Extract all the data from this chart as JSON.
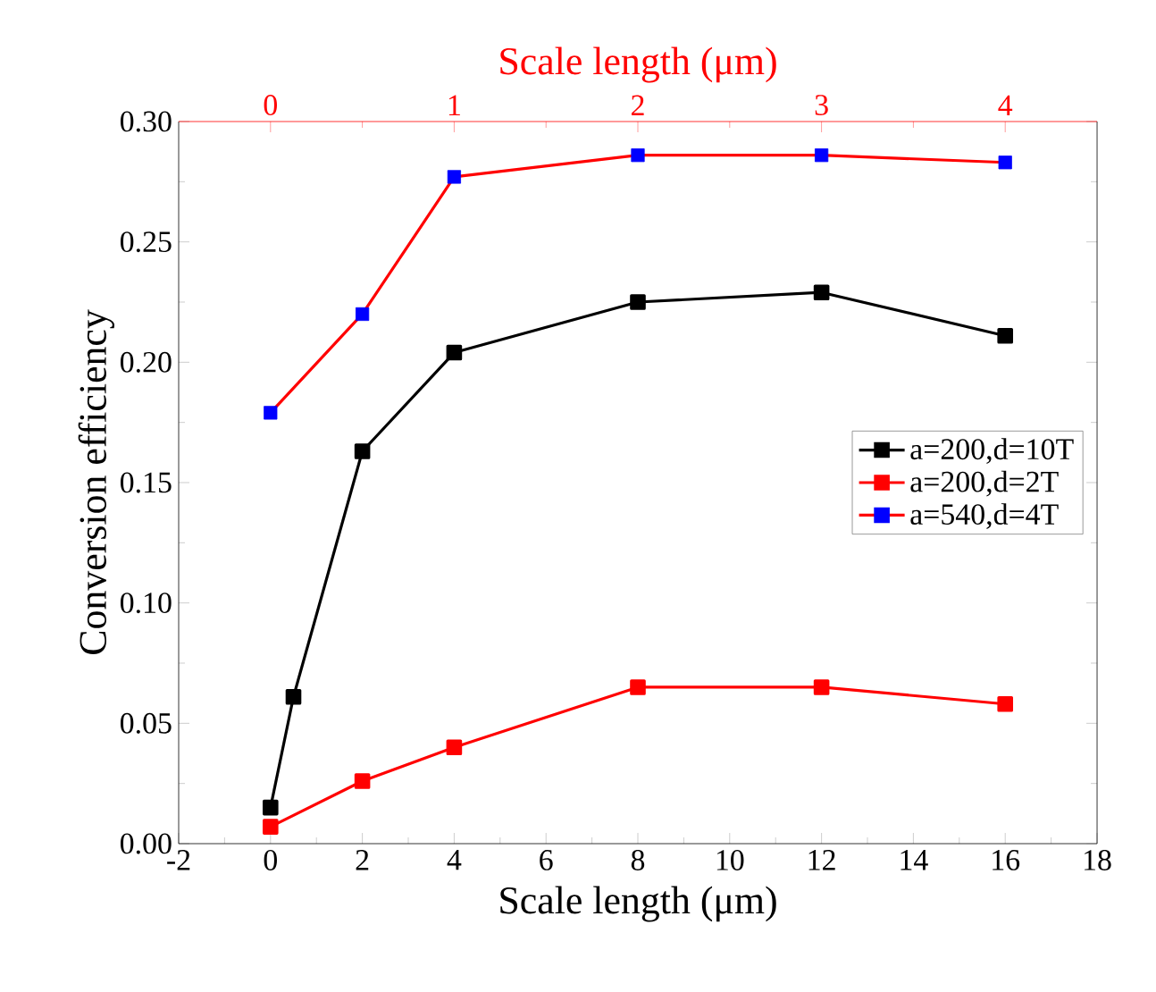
{
  "chart_data": {
    "type": "line",
    "xlabel": "Scale length (μm)",
    "ylabel": "Conversion efficiency",
    "x2label": "Scale length (μm)",
    "xlim": [
      -2,
      18
    ],
    "xticks": [
      -2,
      0,
      2,
      4,
      6,
      8,
      10,
      12,
      14,
      16,
      18
    ],
    "x2lim": [
      -0.5,
      4.5
    ],
    "x2ticks": [
      0,
      1,
      2,
      3,
      4
    ],
    "ylim": [
      0,
      0.3
    ],
    "yticks": [
      {
        "value": 0,
        "label": "0.00"
      },
      {
        "value": 0.05,
        "label": "0.05"
      },
      {
        "value": 0.1,
        "label": "0.10"
      },
      {
        "value": 0.15,
        "label": "0.15"
      },
      {
        "value": 0.2,
        "label": "0.20"
      },
      {
        "value": 0.25,
        "label": "0.25"
      },
      {
        "value": 0.3,
        "label": "0.30"
      }
    ],
    "grid": false,
    "legend": "right",
    "marker": "square",
    "line_style": "solid",
    "series": [
      {
        "name": "a=200,d=10T",
        "color": "#000000",
        "x": [
          0,
          0.5,
          2,
          4,
          8,
          12,
          16
        ],
        "values": [
          0.015,
          0.061,
          0.163,
          0.204,
          0.225,
          0.229,
          0.211
        ]
      },
      {
        "name": "a=200,d=2T",
        "color": "#ff0000",
        "x": [
          0,
          2,
          4,
          8,
          12,
          16
        ],
        "values": [
          0.007,
          0.026,
          0.04,
          0.065,
          0.065,
          0.058
        ]
      },
      {
        "name": "a=540,d=4T",
        "color": "#ff0000",
        "colors": [
          "#0000ff",
          "#0000ff",
          "#0000ff",
          "#0000ff",
          "#0000ff",
          "#0000ff"
        ],
        "axis": "x2",
        "x": [
          0,
          0.5,
          1,
          2,
          3,
          4
        ],
        "values": [
          0.179,
          0.22,
          0.277,
          0.286,
          0.286,
          0.283
        ]
      }
    ]
  }
}
